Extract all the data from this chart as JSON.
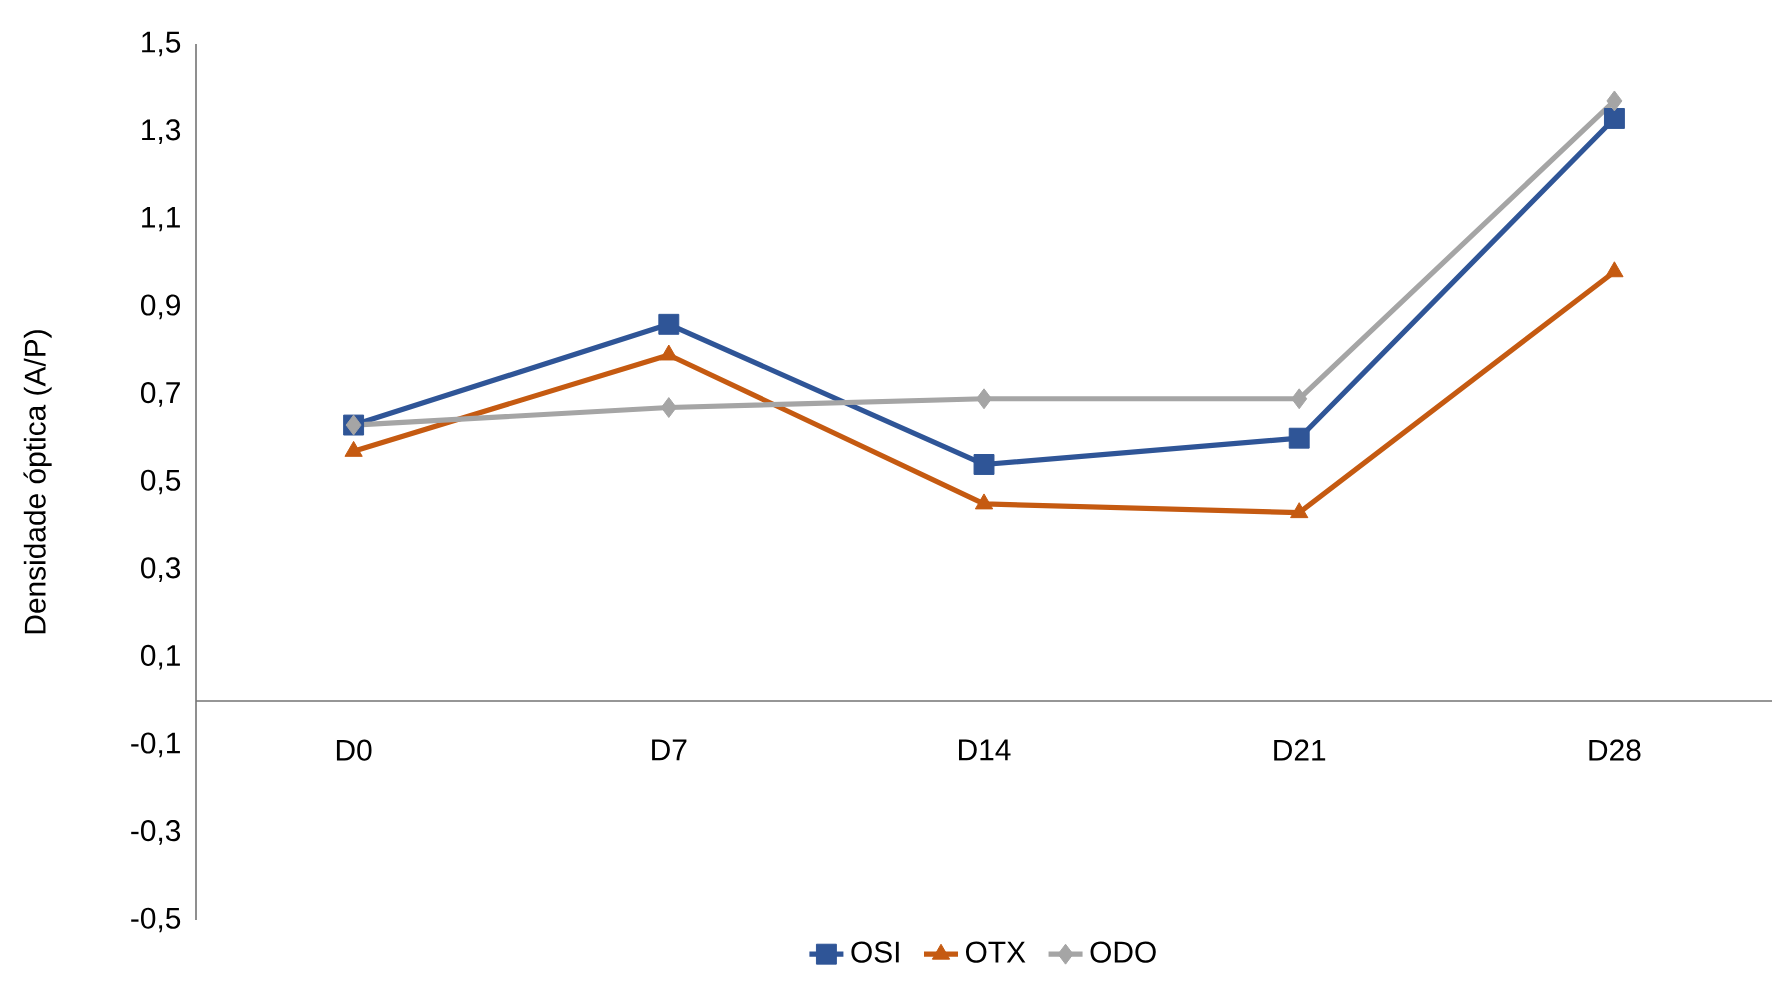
{
  "chart_data": {
    "type": "line",
    "ylabel": "Densidade óptica (A/P)",
    "categories": [
      "D0",
      "D7",
      "D14",
      "D21",
      "D28"
    ],
    "series": [
      {
        "name": "OSI",
        "color": "#2f5597",
        "marker": "square",
        "values": [
          0.63,
          0.86,
          0.54,
          0.6,
          1.33
        ]
      },
      {
        "name": "OTX",
        "color": "#c55a11",
        "marker": "triangle",
        "values": [
          0.57,
          0.79,
          0.45,
          0.43,
          0.98
        ]
      },
      {
        "name": "ODO",
        "color": "#a5a5a5",
        "marker": "diamond",
        "values": [
          0.63,
          0.67,
          0.69,
          0.69,
          1.37
        ]
      }
    ],
    "ylim": [
      -0.5,
      1.5
    ],
    "yticks": [
      {
        "value": -0.5,
        "label": "-0,5"
      },
      {
        "value": -0.3,
        "label": "-0,3"
      },
      {
        "value": -0.1,
        "label": "-0,1"
      },
      {
        "value": 0.1,
        "label": "0,1"
      },
      {
        "value": 0.3,
        "label": "0,3"
      },
      {
        "value": 0.5,
        "label": "0,5"
      },
      {
        "value": 0.7,
        "label": "0,7"
      },
      {
        "value": 0.9,
        "label": "0,9"
      },
      {
        "value": 1.1,
        "label": "1,1"
      },
      {
        "value": 1.3,
        "label": "1,3"
      },
      {
        "value": 1.5,
        "label": "1,5"
      }
    ],
    "grid": false,
    "legend": "bottom",
    "line_style": "solid"
  }
}
